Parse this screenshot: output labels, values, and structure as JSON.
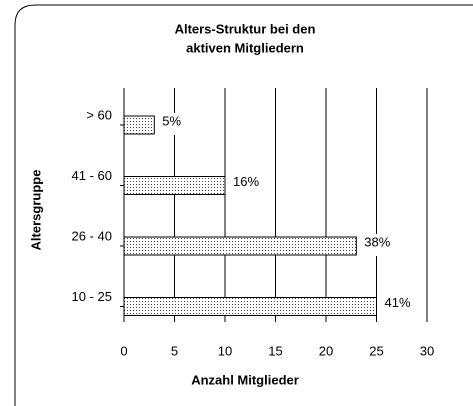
{
  "chart_data": {
    "type": "bar",
    "orientation": "horizontal",
    "title": [
      "Alters-Struktur bei den",
      "aktiven Mitgliedern"
    ],
    "x_label": "Anzahl Mitglieder",
    "y_label": "Altersgruppe",
    "categories": [
      "> 60",
      "41 - 60",
      "26 - 40",
      "10 - 25"
    ],
    "values": [
      3,
      10,
      23,
      25
    ],
    "value_labels": [
      "5%",
      "16%",
      "38%",
      "41%"
    ],
    "color": "#000000",
    "xlim": [
      0,
      30
    ],
    "xticks": [
      0,
      5,
      10,
      15,
      20,
      25,
      30
    ],
    "grid": true
  }
}
